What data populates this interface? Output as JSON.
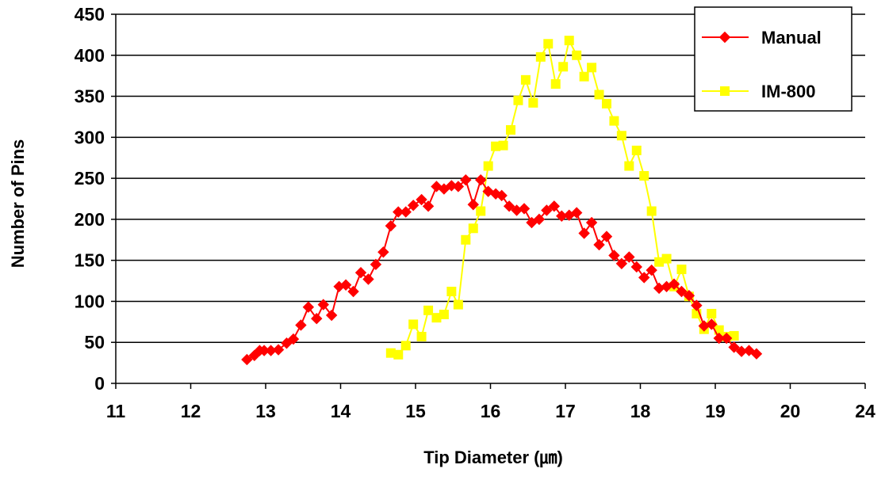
{
  "chart_data": {
    "type": "line",
    "title": "",
    "xlabel": "Tip Diameter (㎛)",
    "ylabel": "Number of Pins",
    "x_tick_labels": [
      "11",
      "12",
      "13",
      "14",
      "15",
      "16",
      "17",
      "18",
      "19",
      "20",
      "24"
    ],
    "y_tick_labels": [
      "0",
      "50",
      "100",
      "150",
      "200",
      "250",
      "300",
      "350",
      "400",
      "450"
    ],
    "xlim": [
      11,
      21
    ],
    "ylim": [
      0,
      450
    ],
    "grid": "horizontal",
    "legend_position": "top-right",
    "series": [
      {
        "name": "Manual",
        "color": "#ff0000",
        "marker": "diamond",
        "x": [
          12.75,
          12.85,
          12.92,
          12.98,
          13.07,
          13.17,
          13.28,
          13.37,
          13.47,
          13.57,
          13.68,
          13.77,
          13.88,
          13.98,
          14.07,
          14.17,
          14.27,
          14.37,
          14.47,
          14.57,
          14.67,
          14.77,
          14.87,
          14.97,
          15.08,
          15.17,
          15.28,
          15.38,
          15.48,
          15.57,
          15.67,
          15.77,
          15.87,
          15.97,
          16.07,
          16.15,
          16.25,
          16.35,
          16.45,
          16.55,
          16.65,
          16.75,
          16.85,
          16.95,
          17.05,
          17.15,
          17.25,
          17.35,
          17.45,
          17.55,
          17.65,
          17.75,
          17.85,
          17.95,
          18.05,
          18.15,
          18.25,
          18.35,
          18.45,
          18.55,
          18.65,
          18.75,
          18.85,
          18.95,
          19.05,
          19.15,
          19.25,
          19.35,
          19.45,
          19.55
        ],
        "y": [
          29,
          34,
          40,
          40,
          40,
          41,
          49,
          54,
          71,
          93,
          79,
          96,
          83,
          118,
          120,
          112,
          135,
          127,
          145,
          160,
          192,
          209,
          209,
          217,
          224,
          216,
          240,
          237,
          241,
          240,
          248,
          218,
          248,
          234,
          231,
          229,
          216,
          211,
          213,
          196,
          200,
          211,
          216,
          204,
          205,
          208,
          183,
          196,
          169,
          179,
          156,
          146,
          154,
          142,
          129,
          138,
          116,
          118,
          121,
          112,
          107,
          95,
          70,
          72,
          55,
          55,
          44,
          39,
          40,
          36
        ]
      },
      {
        "name": "IM-800",
        "color": "#ffff00",
        "marker": "square",
        "x": [
          14.67,
          14.77,
          14.87,
          14.97,
          15.08,
          15.17,
          15.28,
          15.38,
          15.48,
          15.57,
          15.67,
          15.77,
          15.87,
          15.97,
          16.07,
          16.17,
          16.27,
          16.37,
          16.47,
          16.57,
          16.67,
          16.77,
          16.87,
          16.97,
          17.05,
          17.15,
          17.25,
          17.35,
          17.45,
          17.55,
          17.65,
          17.75,
          17.85,
          17.95,
          18.05,
          18.15,
          18.25,
          18.35,
          18.45,
          18.55,
          18.65,
          18.75,
          18.85,
          18.95,
          19.05,
          19.15,
          19.25
        ],
        "y": [
          37,
          35,
          46,
          72,
          57,
          89,
          80,
          84,
          112,
          96,
          175,
          189,
          210,
          265,
          289,
          290,
          309,
          345,
          370,
          342,
          398,
          414,
          365,
          386,
          418,
          400,
          374,
          385,
          352,
          341,
          320,
          302,
          265,
          284,
          253,
          210,
          148,
          152,
          118,
          139,
          106,
          85,
          66,
          85,
          65,
          57,
          58
        ]
      }
    ]
  }
}
